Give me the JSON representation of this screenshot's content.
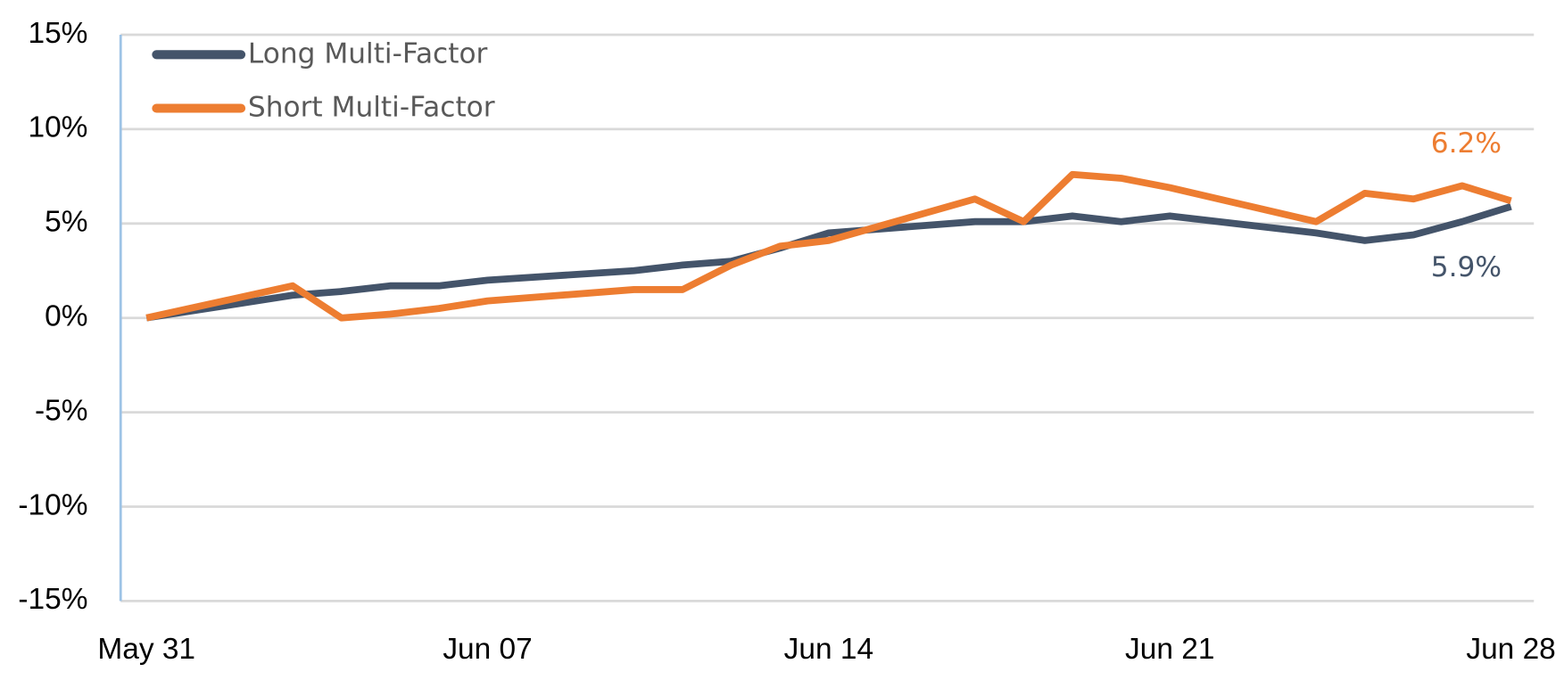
{
  "chart_data": {
    "type": "line",
    "x": [
      "May 31",
      "Jun 03",
      "Jun 04",
      "Jun 05",
      "Jun 06",
      "Jun 07",
      "Jun 10",
      "Jun 11",
      "Jun 12",
      "Jun 13",
      "Jun 14",
      "Jun 17",
      "Jun 18",
      "Jun 19",
      "Jun 20",
      "Jun 21",
      "Jun 24",
      "Jun 25",
      "Jun 26",
      "Jun 27",
      "Jun 28"
    ],
    "series": [
      {
        "name": "Long Multi-Factor",
        "color": "#44546a",
        "values": [
          0,
          1.2,
          1.4,
          1.7,
          1.7,
          2.0,
          2.5,
          2.8,
          3.0,
          3.7,
          4.5,
          5.1,
          5.1,
          5.4,
          5.1,
          5.4,
          4.5,
          4.1,
          4.4,
          5.1,
          5.9
        ],
        "value_labels": [
          null,
          null,
          null,
          null,
          null,
          null,
          null,
          null,
          null,
          null,
          null,
          null,
          null,
          null,
          null,
          null,
          null,
          null,
          null,
          null,
          "5.9%"
        ]
      },
      {
        "name": "Short Multi-Factor",
        "color": "#ed7d31",
        "values": [
          0,
          1.7,
          0,
          0.2,
          0.5,
          0.9,
          1.5,
          1.5,
          2.8,
          3.8,
          4.1,
          6.3,
          5.1,
          7.6,
          7.4,
          6.9,
          5.1,
          6.6,
          6.3,
          7.0,
          6.2
        ],
        "value_labels": [
          null,
          null,
          null,
          null,
          null,
          null,
          null,
          null,
          null,
          null,
          null,
          null,
          null,
          null,
          null,
          null,
          null,
          null,
          null,
          null,
          "6.2%"
        ]
      }
    ],
    "xticks": [
      "May 31",
      "Jun 07",
      "Jun 14",
      "Jun 21",
      "Jun 28"
    ],
    "ylim": [
      -15,
      15
    ],
    "yticks": [
      {
        "value": -15,
        "label": "-15%"
      },
      {
        "value": -10,
        "label": "-10%"
      },
      {
        "value": -5,
        "label": "-5%"
      },
      {
        "value": 0,
        "label": "0%"
      },
      {
        "value": 5,
        "label": "5%"
      },
      {
        "value": 10,
        "label": "10%"
      },
      {
        "value": 15,
        "label": "15%"
      }
    ],
    "grid": true,
    "legend": "top-left"
  }
}
